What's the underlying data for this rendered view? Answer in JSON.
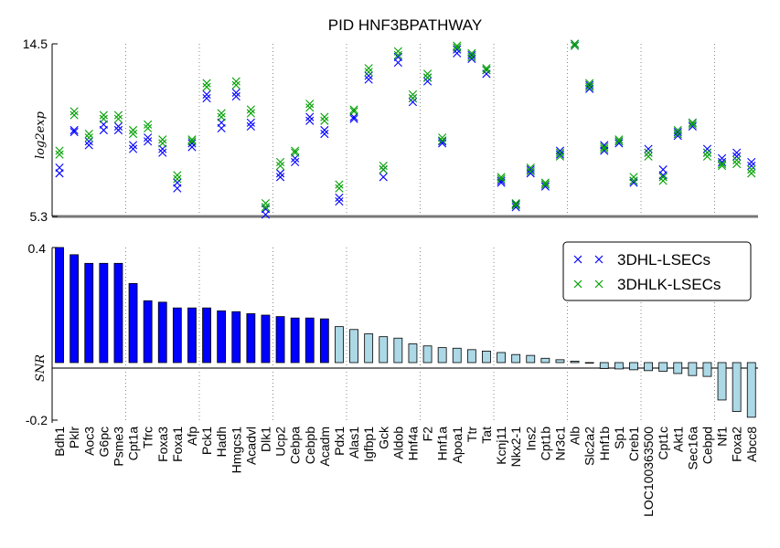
{
  "chart_data": [
    {
      "type": "scatter",
      "title": "PID HNF3BPATHWAY",
      "ylabel": "log2exp",
      "ylim": [
        5.3,
        14.5
      ],
      "yticks": [
        "14.5",
        "5.3"
      ],
      "categories": [
        "Bdh1",
        "Pklr",
        "Aoc3",
        "G6pc",
        "Psme3",
        "Cpt1a",
        "Tfrc",
        "Foxa3",
        "Foxa1",
        "Afp",
        "Pck1",
        "Hadh",
        "Hmgcs1",
        "Acadvl",
        "Dlk1",
        "Ucp2",
        "Cebpa",
        "Cebpb",
        "Acadm",
        "Pdx1",
        "Alas1",
        "Igfbp1",
        "Gck",
        "Aldob",
        "Hnf4a",
        "F2",
        "Hnf1a",
        "Apoa1",
        "Ttr",
        "Tat",
        "Kcnj11",
        "Nkx2-1",
        "Ins2",
        "Cpt1b",
        "Nr3c1",
        "Alb",
        "Slc2a2",
        "Hnf1b",
        "Sp1",
        "Creb1",
        "LOC100363500",
        "Cpt1c",
        "Akt1",
        "Sec16a",
        "Cebpd",
        "Nf1",
        "Foxa2",
        "Abcc8"
      ],
      "series": [
        {
          "name": "3DHL-LSECs",
          "color": "#0000ff",
          "marker": "x",
          "values": [
            [
              7.6,
              7.9
            ],
            [
              9.8,
              9.9
            ],
            [
              9.1,
              9.3
            ],
            [
              9.9,
              10.2
            ],
            [
              9.9,
              10.1
            ],
            [
              8.9,
              9.1
            ],
            [
              9.3,
              9.5
            ],
            [
              8.7,
              8.9
            ],
            [
              6.8,
              7.1
            ],
            [
              9.0,
              9.2
            ],
            [
              11.6,
              11.8
            ],
            [
              10.0,
              10.3
            ],
            [
              11.7,
              11.9
            ],
            [
              10.1,
              10.3
            ],
            [
              5.4,
              5.7
            ],
            [
              7.4,
              7.6
            ],
            [
              8.2,
              8.4
            ],
            [
              10.4,
              10.6
            ],
            [
              9.7,
              9.9
            ],
            [
              6.1,
              6.3
            ],
            [
              10.5,
              10.6
            ],
            [
              12.6,
              12.8
            ],
            [
              7.4,
              7.8
            ],
            [
              13.5,
              13.8
            ],
            [
              11.4,
              11.6
            ],
            [
              12.5,
              12.7
            ],
            [
              9.2,
              9.3
            ],
            [
              14.0,
              14.2
            ],
            [
              13.7,
              13.9
            ],
            [
              12.9,
              13.1
            ],
            [
              7.1,
              7.2
            ],
            [
              5.8,
              5.95
            ],
            [
              7.6,
              7.8
            ],
            [
              6.9,
              7.0
            ],
            [
              8.6,
              8.8
            ],
            [
              14.4,
              14.5
            ],
            [
              12.1,
              12.3
            ],
            [
              8.8,
              9.1
            ],
            [
              9.2,
              9.3
            ],
            [
              7.1,
              7.2
            ],
            [
              8.7,
              8.9
            ],
            [
              7.5,
              7.8
            ],
            [
              9.6,
              9.8
            ],
            [
              10.1,
              10.3
            ],
            [
              8.7,
              8.9
            ],
            [
              8.2,
              8.4
            ],
            [
              8.5,
              8.7
            ],
            [
              8.0,
              8.2
            ]
          ]
        },
        {
          "name": "3DHLK-LSECs",
          "color": "#00a000",
          "marker": "x",
          "values": [
            [
              8.6,
              8.8
            ],
            [
              10.7,
              10.9
            ],
            [
              9.5,
              9.7
            ],
            [
              10.5,
              10.7
            ],
            [
              10.5,
              10.7
            ],
            [
              9.7,
              9.9
            ],
            [
              10.0,
              10.2
            ],
            [
              9.2,
              9.4
            ],
            [
              7.3,
              7.5
            ],
            [
              9.3,
              9.4
            ],
            [
              12.2,
              12.4
            ],
            [
              10.6,
              10.8
            ],
            [
              12.3,
              12.5
            ],
            [
              10.8,
              11.0
            ],
            [
              5.8,
              6.0
            ],
            [
              8.0,
              8.2
            ],
            [
              8.7,
              8.8
            ],
            [
              11.1,
              11.3
            ],
            [
              10.4,
              10.6
            ],
            [
              6.8,
              7.0
            ],
            [
              10.9,
              11.0
            ],
            [
              13.0,
              13.2
            ],
            [
              7.8,
              8.0
            ],
            [
              13.9,
              14.1
            ],
            [
              11.6,
              11.8
            ],
            [
              12.7,
              12.9
            ],
            [
              9.35,
              9.5
            ],
            [
              14.3,
              14.4
            ],
            [
              13.8,
              14.0
            ],
            [
              13.1,
              13.2
            ],
            [
              7.3,
              7.4
            ],
            [
              5.9,
              6.0
            ],
            [
              7.7,
              7.9
            ],
            [
              7.0,
              7.1
            ],
            [
              8.5,
              8.7
            ],
            [
              14.4,
              14.5
            ],
            [
              12.2,
              12.4
            ],
            [
              8.9,
              9.0
            ],
            [
              9.3,
              9.4
            ],
            [
              7.2,
              7.4
            ],
            [
              8.5,
              8.7
            ],
            [
              7.2,
              7.4
            ],
            [
              9.7,
              9.9
            ],
            [
              10.2,
              10.3
            ],
            [
              8.5,
              8.7
            ],
            [
              8.0,
              8.1
            ],
            [
              8.1,
              8.3
            ],
            [
              7.6,
              7.8
            ]
          ]
        }
      ]
    },
    {
      "type": "bar",
      "ylabel": "SNR",
      "ylim": [
        -0.2,
        0.4
      ],
      "yticks": [
        "0.4",
        "-0.2"
      ],
      "categories": [
        "Bdh1",
        "Pklr",
        "Aoc3",
        "G6pc",
        "Psme3",
        "Cpt1a",
        "Tfrc",
        "Foxa3",
        "Foxa1",
        "Afp",
        "Pck1",
        "Hadh",
        "Hmgcs1",
        "Acadvl",
        "Dlk1",
        "Ucp2",
        "Cebpa",
        "Cebpb",
        "Acadm",
        "Pdx1",
        "Alas1",
        "Igfbp1",
        "Gck",
        "Aldob",
        "Hnf4a",
        "F2",
        "Hnf1a",
        "Apoa1",
        "Ttr",
        "Tat",
        "Kcnj11",
        "Nkx2-1",
        "Ins2",
        "Cpt1b",
        "Nr3c1",
        "Alb",
        "Slc2a2",
        "Hnf1b",
        "Sp1",
        "Creb1",
        "LOC100363500",
        "Cpt1c",
        "Akt1",
        "Sec16a",
        "Cebpd",
        "Nf1",
        "Foxa2",
        "Abcc8"
      ],
      "values": [
        0.4,
        0.375,
        0.345,
        0.345,
        0.345,
        0.275,
        0.215,
        0.21,
        0.19,
        0.19,
        0.19,
        0.18,
        0.177,
        0.17,
        0.165,
        0.16,
        0.155,
        0.155,
        0.152,
        0.125,
        0.115,
        0.1,
        0.09,
        0.085,
        0.065,
        0.058,
        0.052,
        0.05,
        0.045,
        0.04,
        0.035,
        0.028,
        0.025,
        0.015,
        0.01,
        0.005,
        0.0,
        -0.02,
        -0.022,
        -0.025,
        -0.028,
        -0.03,
        -0.038,
        -0.045,
        -0.048,
        -0.13,
        -0.17,
        -0.19
      ],
      "colors": {
        "high": "#0000ff",
        "low": "#add8e6"
      },
      "high_count": 19
    }
  ],
  "legend": {
    "placement": "top-right",
    "items": [
      {
        "label": "3DHL-LSECs",
        "color": "#0000ff"
      },
      {
        "label": "3DHLK-LSECs",
        "color": "#00a000"
      }
    ]
  }
}
